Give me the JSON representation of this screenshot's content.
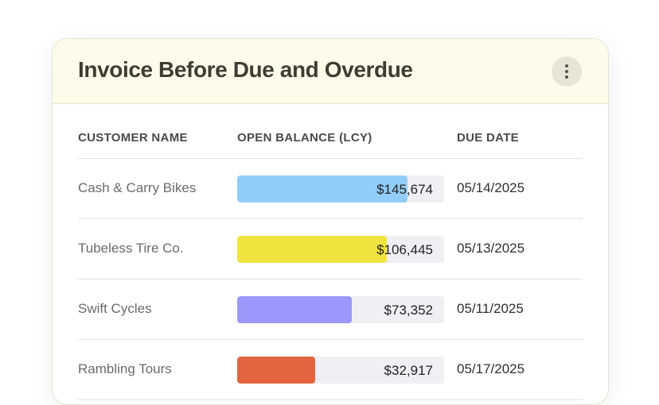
{
  "card": {
    "title": "Invoice Before Due and Overdue"
  },
  "table": {
    "columns": {
      "customer": "CUSTOMER NAME",
      "balance": "OPEN BALANCE (LCY)",
      "due": "DUE DATE"
    },
    "rows": [
      {
        "customer": "Cash & Carry Bikes",
        "balance": "$145,674",
        "due": "05/14/2025",
        "fill": 0.823,
        "color": "#92cdf9"
      },
      {
        "customer": "Tubeless Tire Co.",
        "balance": "$106,445",
        "due": "05/13/2025",
        "fill": 0.723,
        "color": "#f0e33e"
      },
      {
        "customer": "Swift Cycles",
        "balance": "$73,352",
        "due": "05/11/2025",
        "fill": 0.554,
        "color": "#9a98fb"
      },
      {
        "customer": "Rambling Tours",
        "balance": "$32,917",
        "due": "05/17/2025",
        "fill": 0.377,
        "color": "#e3653f"
      }
    ]
  },
  "icons": {
    "menu": "more-vertical-icon"
  }
}
